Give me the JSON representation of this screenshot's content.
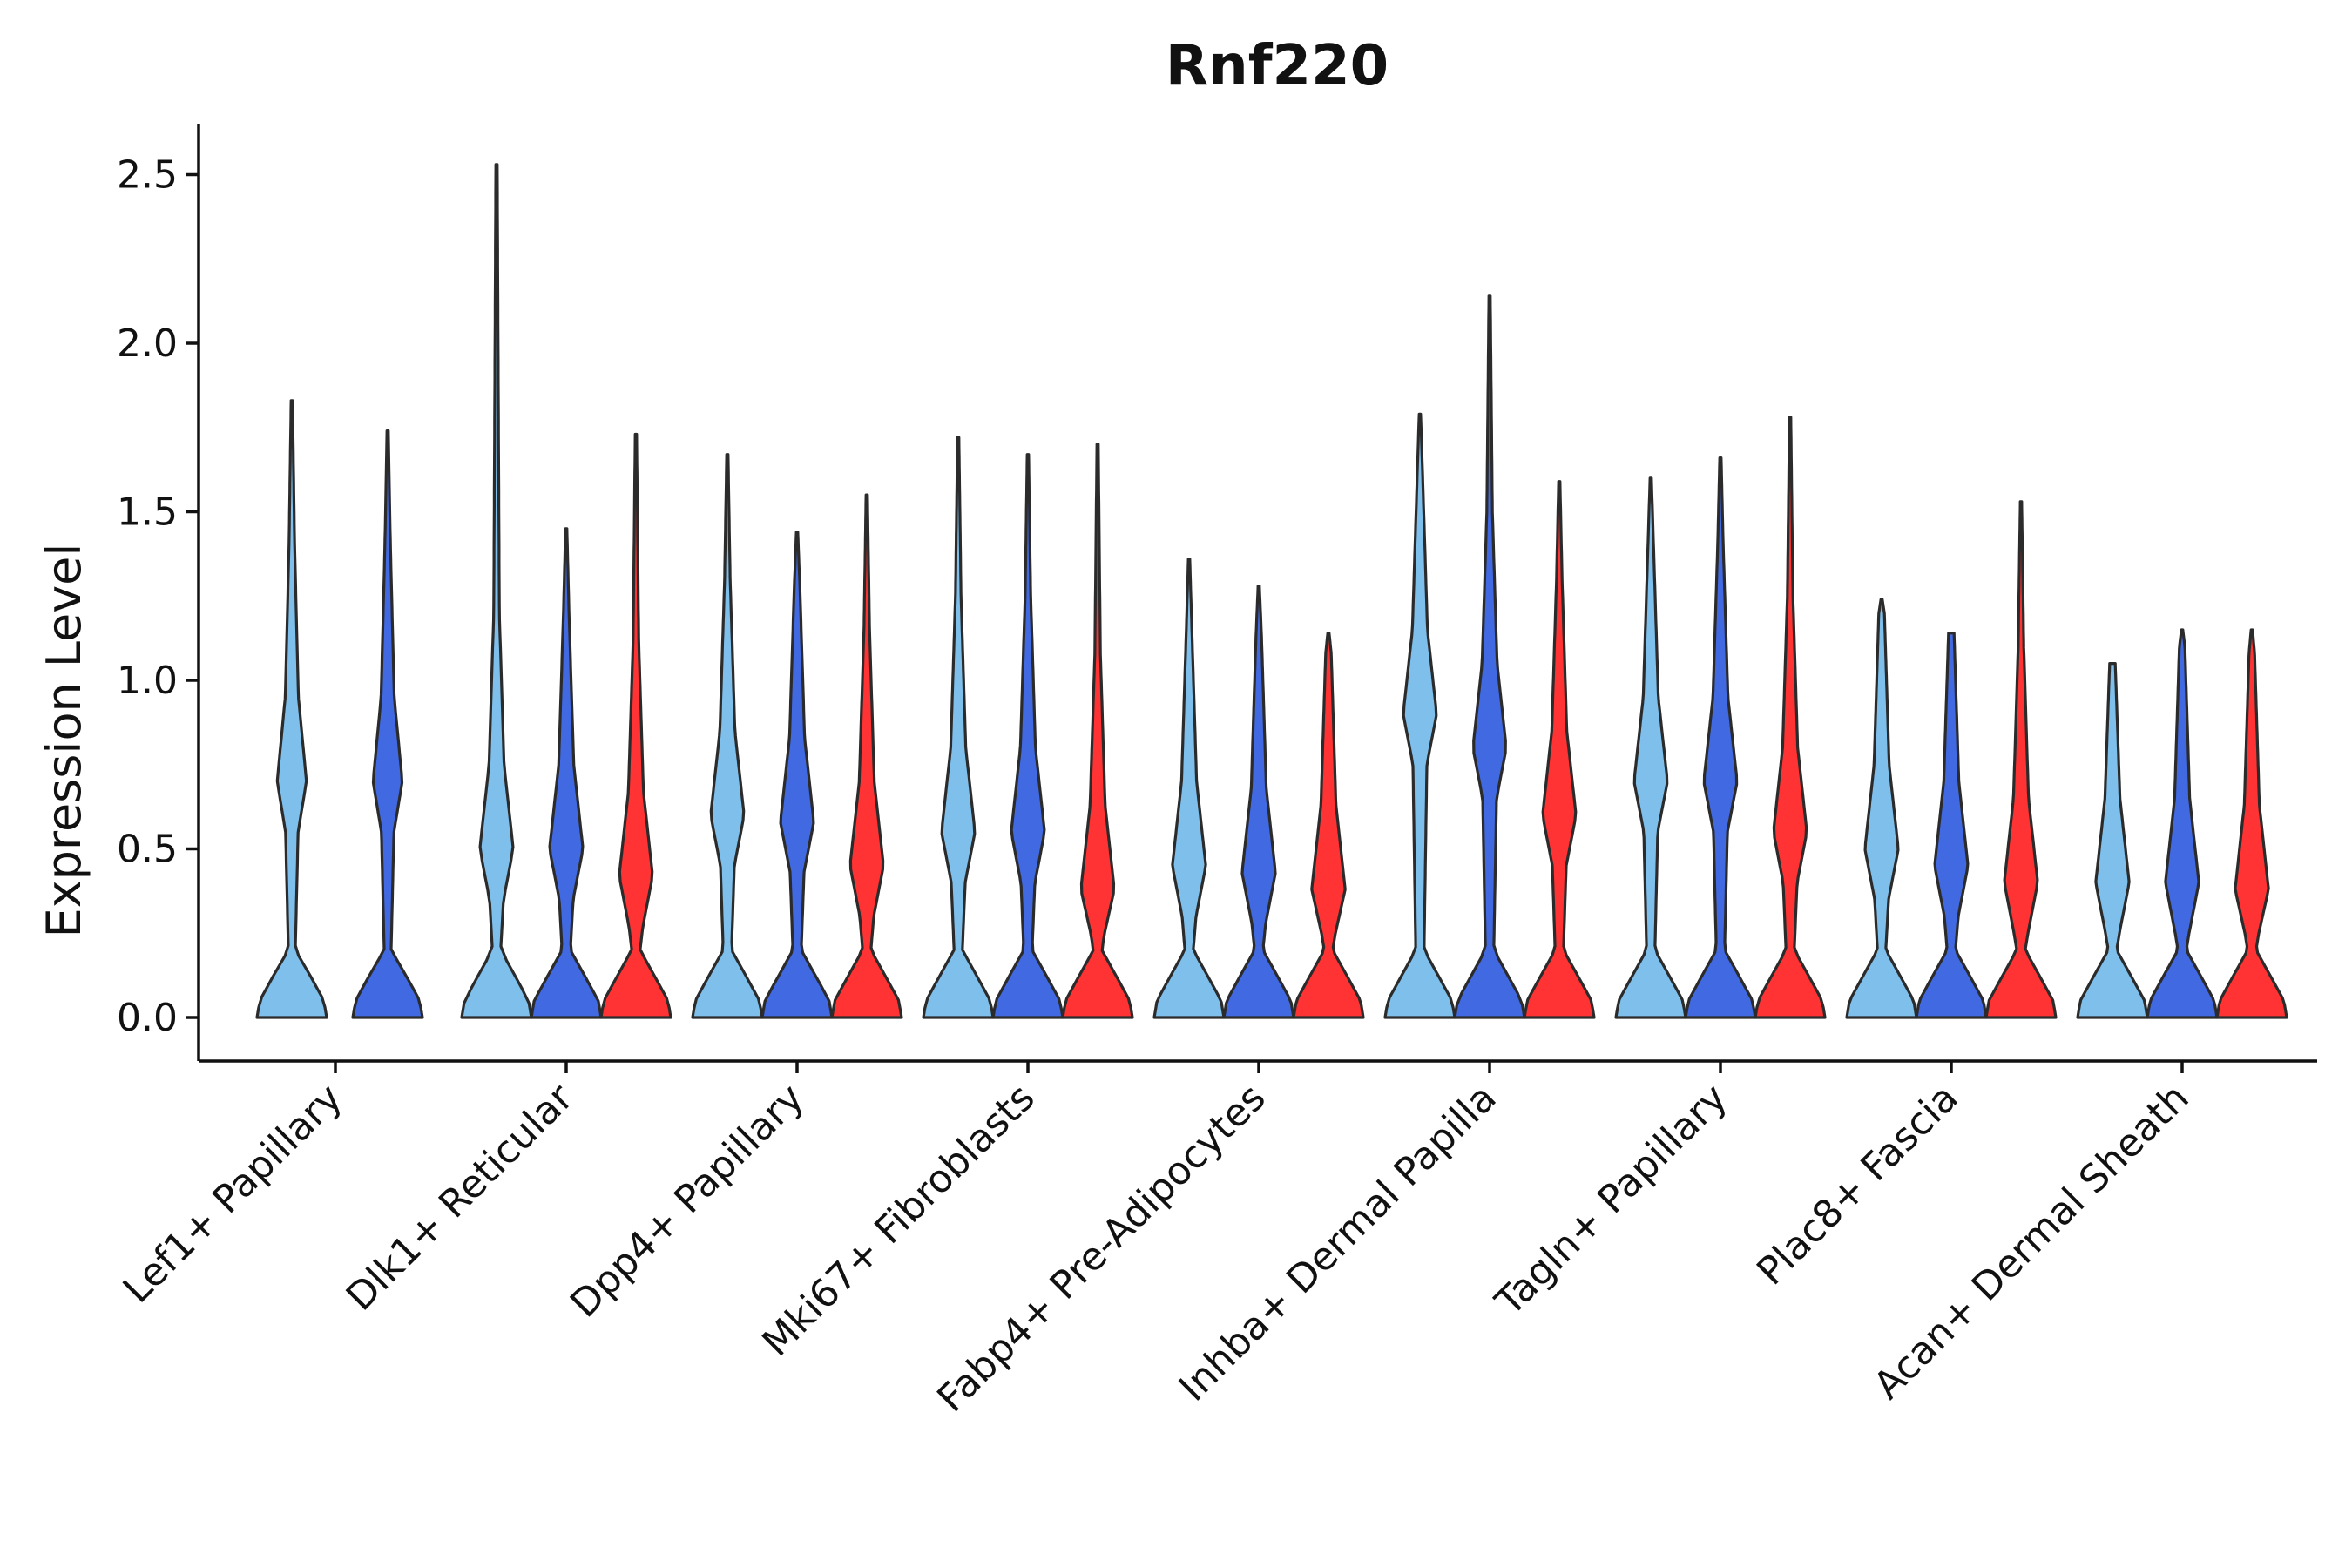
{
  "chart_data": {
    "type": "violin",
    "title": "Rnf220",
    "xlabel": "",
    "ylabel": "Expression Level",
    "ylim": [
      -0.13,
      2.65
    ],
    "yticks": [
      0.0,
      0.5,
      1.0,
      1.5,
      2.0,
      2.5
    ],
    "ytick_labels": [
      "0.0",
      "0.5",
      "1.0",
      "1.5",
      "2.0",
      "2.5"
    ],
    "legend": "none",
    "colors": [
      "#7FBFEB",
      "#4169E1",
      "#FF3333"
    ],
    "categories": [
      {
        "label": "Lef1+ Papillary",
        "violins": [
          {
            "group": 0,
            "max": 1.83,
            "peak": 0.7
          },
          {
            "group": 1,
            "max": 1.74,
            "peak": 0.7
          }
        ]
      },
      {
        "label": "Dlk1+ Reticular",
        "violins": [
          {
            "group": 0,
            "max": 2.53,
            "peak": 0.5
          },
          {
            "group": 1,
            "max": 1.45,
            "peak": 0.5
          },
          {
            "group": 2,
            "max": 1.73,
            "peak": 0.42
          }
        ]
      },
      {
        "label": "Dpp4+ Papillary",
        "violins": [
          {
            "group": 0,
            "max": 1.67,
            "peak": 0.6
          },
          {
            "group": 1,
            "max": 1.44,
            "peak": 0.58
          },
          {
            "group": 2,
            "max": 1.55,
            "peak": 0.45
          }
        ]
      },
      {
        "label": "Mki67+ Fibroblasts",
        "violins": [
          {
            "group": 0,
            "max": 1.72,
            "peak": 0.55
          },
          {
            "group": 1,
            "max": 1.67,
            "peak": 0.55
          },
          {
            "group": 2,
            "max": 1.7,
            "peak": 0.38
          }
        ]
      },
      {
        "label": "Fabp4+ Pre-Adipocytes",
        "violins": [
          {
            "group": 0,
            "max": 1.36,
            "peak": 0.45
          },
          {
            "group": 1,
            "max": 1.28,
            "peak": 0.43
          },
          {
            "group": 2,
            "max": 1.14,
            "peak": 0.38
          }
        ]
      },
      {
        "label": "Inhba+ Dermal Papilla",
        "violins": [
          {
            "group": 0,
            "max": 1.79,
            "peak": 0.9
          },
          {
            "group": 1,
            "max": 2.14,
            "peak": 0.8
          },
          {
            "group": 2,
            "max": 1.59,
            "peak": 0.6
          }
        ]
      },
      {
        "label": "Tagln+ Papillary",
        "violins": [
          {
            "group": 0,
            "max": 1.6,
            "peak": 0.7
          },
          {
            "group": 1,
            "max": 1.66,
            "peak": 0.7
          },
          {
            "group": 2,
            "max": 1.78,
            "peak": 0.55
          }
        ]
      },
      {
        "label": "Plac8+ Fascia",
        "violins": [
          {
            "group": 0,
            "max": 1.24,
            "peak": 0.5
          },
          {
            "group": 1,
            "max": 1.14,
            "peak": 0.45
          },
          {
            "group": 2,
            "max": 1.53,
            "peak": 0.4
          }
        ]
      },
      {
        "label": "Acan+ Dermal Sheath",
        "violins": [
          {
            "group": 0,
            "max": 1.05,
            "peak": 0.4
          },
          {
            "group": 1,
            "max": 1.15,
            "peak": 0.4
          },
          {
            "group": 2,
            "max": 1.15,
            "peak": 0.38
          }
        ]
      }
    ]
  }
}
